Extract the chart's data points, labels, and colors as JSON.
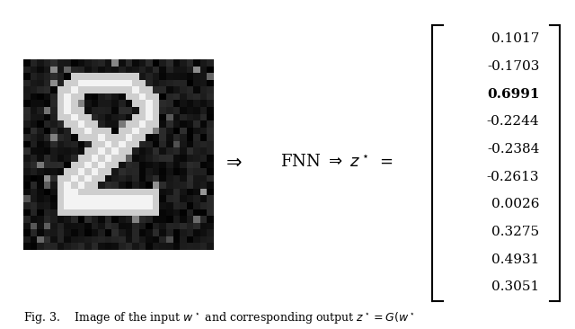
{
  "values": [
    0.1017,
    -0.1703,
    0.6991,
    -0.2244,
    -0.2384,
    -0.2613,
    0.0026,
    0.3275,
    0.4931,
    0.3051
  ],
  "bold_index": 2,
  "background_color": "#ffffff",
  "caption_font_size": 9
}
